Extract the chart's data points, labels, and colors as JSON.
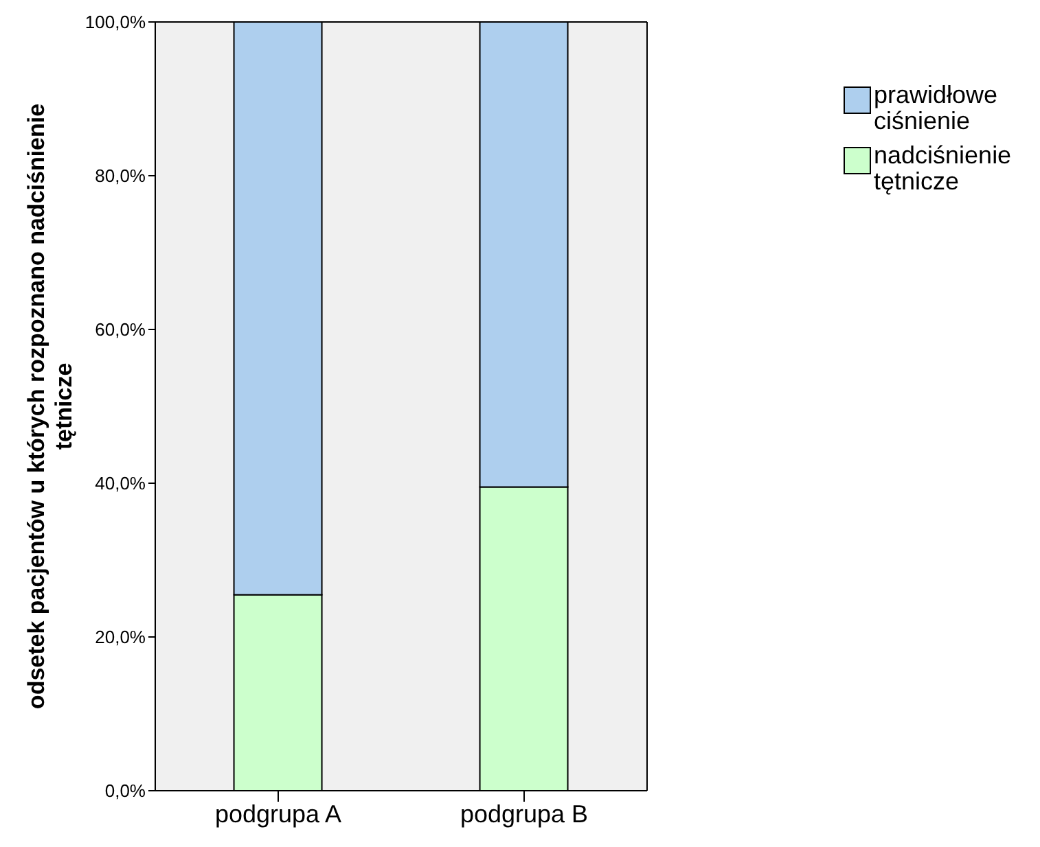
{
  "chart_data": {
    "type": "bar",
    "stacked": true,
    "ylabel": "odsetek pacjentów u których rozpoznano nadciśnienie tętnicze",
    "categories": [
      "podgrupa A",
      "podgrupa B"
    ],
    "series": [
      {
        "name": "nadciśnienie tętnicze",
        "color": "#ccffcc",
        "values": [
          25.5,
          39.5
        ]
      },
      {
        "name": "prawidłowe ciśnienie",
        "color": "#aecfee",
        "values": [
          74.5,
          60.5
        ]
      }
    ],
    "ylim": [
      0,
      100
    ],
    "yticks": [
      {
        "value": 0,
        "label": "0,0%"
      },
      {
        "value": 20,
        "label": "20,0%"
      },
      {
        "value": 40,
        "label": "40,0%"
      },
      {
        "value": 60,
        "label": "60,0%"
      },
      {
        "value": 80,
        "label": "80,0%"
      },
      {
        "value": 100,
        "label": "100,0%"
      }
    ],
    "legend": "right",
    "grid": false
  }
}
